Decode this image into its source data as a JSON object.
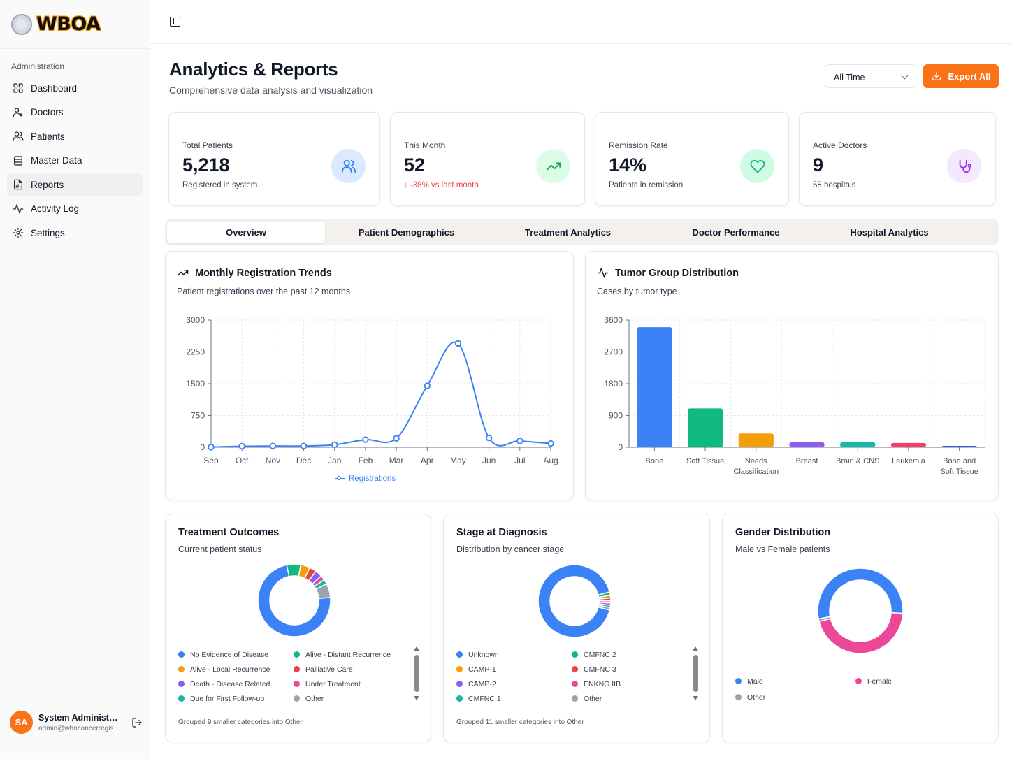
{
  "brand": {
    "name": "WBOA"
  },
  "sidebar": {
    "section_label": "Administration",
    "items": [
      {
        "label": "Dashboard",
        "icon": "grid-icon"
      },
      {
        "label": "Doctors",
        "icon": "user-doctor-icon"
      },
      {
        "label": "Patients",
        "icon": "users-icon"
      },
      {
        "label": "Master Data",
        "icon": "database-icon"
      },
      {
        "label": "Reports",
        "icon": "file-chart-icon",
        "active": true
      },
      {
        "label": "Activity Log",
        "icon": "activity-icon"
      },
      {
        "label": "Settings",
        "icon": "gear-icon"
      }
    ],
    "user": {
      "initials": "SA",
      "name": "System Administrator",
      "email": "admin@wbocancerregistry.org"
    }
  },
  "header": {
    "title": "Analytics & Reports",
    "subtitle": "Comprehensive data analysis and visualization",
    "time_filter": "All Time",
    "export_label": "Export All"
  },
  "stats": [
    {
      "label": "Total Patients",
      "value": "5,218",
      "sub": "Registered in system",
      "icon": "users-icon",
      "icon_bg": "#dbeafe",
      "icon_color": "#3b82f6"
    },
    {
      "label": "This Month",
      "value": "52",
      "sub": "↓ -38% vs last month",
      "icon": "trending-up-icon",
      "icon_bg": "#dcfce7",
      "icon_color": "#16a34a",
      "negative": true
    },
    {
      "label": "Remission Rate",
      "value": "14%",
      "sub": "Patients in remission",
      "icon": "heart-icon",
      "icon_bg": "#d1fae5",
      "icon_color": "#10b981"
    },
    {
      "label": "Active Doctors",
      "value": "9",
      "sub": "58 hospitals",
      "icon": "stethoscope-icon",
      "icon_bg": "#f3e8ff",
      "icon_color": "#9333ea"
    }
  ],
  "tabs": [
    {
      "label": "Overview",
      "active": true
    },
    {
      "label": "Patient Demographics"
    },
    {
      "label": "Treatment Analytics"
    },
    {
      "label": "Doctor Performance"
    },
    {
      "label": "Hospital Analytics"
    }
  ],
  "charts": {
    "registration": {
      "title": "Monthly Registration Trends",
      "subtitle": "Patient registrations over the past 12 months",
      "legend": "Registrations"
    },
    "tumor": {
      "title": "Tumor Group Distribution",
      "subtitle": "Cases by tumor type"
    },
    "outcomes": {
      "title": "Treatment Outcomes",
      "subtitle": "Current patient status",
      "note": "Grouped 9 smaller categories into Other"
    },
    "stage": {
      "title": "Stage at Diagnosis",
      "subtitle": "Distribution by cancer stage",
      "note": "Grouped 11 smaller categories into Other"
    },
    "gender": {
      "title": "Gender Distribution",
      "subtitle": "Male vs Female patients"
    }
  },
  "chart_data": [
    {
      "type": "line",
      "categories": [
        "Sep",
        "Oct",
        "Nov",
        "Dec",
        "Jan",
        "Feb",
        "Mar",
        "Apr",
        "May",
        "Jun",
        "Jul",
        "Aug"
      ],
      "series": [
        {
          "name": "Registrations",
          "values": [
            5,
            25,
            30,
            30,
            60,
            180,
            210,
            1450,
            2450,
            220,
            150,
            90
          ],
          "color": "#3b82f6"
        }
      ],
      "yticks": [
        0,
        750,
        1500,
        2250,
        3000
      ],
      "ylim": [
        0,
        3000
      ],
      "grid": true
    },
    {
      "type": "bar",
      "categories": [
        "Bone",
        "Soft Tissue",
        "Needs Classification",
        "Breast",
        "Brain & CNS",
        "Leukemia",
        "Bone and Soft Tissue"
      ],
      "values": [
        3400,
        1100,
        390,
        140,
        140,
        120,
        40
      ],
      "colors": [
        "#3b82f6",
        "#10b981",
        "#f59e0b",
        "#8b5cf6",
        "#14b8a6",
        "#f43f5e",
        "#2563eb"
      ],
      "yticks": [
        0,
        900,
        1800,
        2700,
        3600
      ],
      "ylim": [
        0,
        3600
      ],
      "grid": true
    },
    {
      "type": "pie",
      "legend": [
        "No Evidence of Disease",
        "Alive - Distant Recurrence",
        "Alive - Local Recurrence",
        "Palliative Care",
        "Death - Disease Related",
        "Under Treatment",
        "Due for First Follow-up",
        "Other"
      ],
      "values": [
        70,
        6,
        4,
        3,
        3,
        2,
        2,
        6
      ],
      "colors": [
        "#3b82f6",
        "#10b981",
        "#f59e0b",
        "#ef4444",
        "#8b5cf6",
        "#ec4899",
        "#14b8a6",
        "#9ca3af"
      ]
    },
    {
      "type": "pie",
      "legend": [
        "Unknown",
        "CMFNC 2",
        "CAMP-1",
        "CMFNC 3",
        "CAMP-2",
        "ENKNG IIB",
        "CMFNC 1",
        "Other"
      ],
      "values": [
        92,
        1.5,
        1.2,
        1.2,
        1,
        1,
        1,
        1.1
      ],
      "colors": [
        "#3b82f6",
        "#10b981",
        "#f59e0b",
        "#ef4444",
        "#8b5cf6",
        "#ec4899",
        "#14b8a6",
        "#9ca3af"
      ]
    },
    {
      "type": "pie",
      "legend": [
        "Male",
        "Female",
        "Other"
      ],
      "values": [
        54,
        45,
        1
      ],
      "colors": [
        "#3b82f6",
        "#ec4899",
        "#9ca3af"
      ]
    }
  ]
}
